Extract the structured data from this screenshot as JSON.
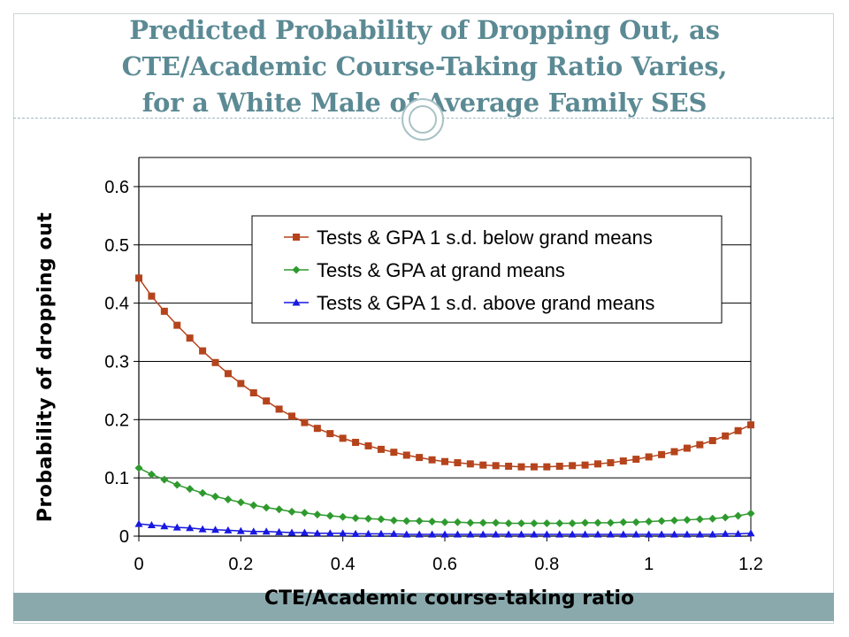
{
  "slide": {
    "title_lines": [
      "Predicted Probability of Dropping Out, as",
      "CTE/Academic Course-Taking Ratio Varies,",
      "for a White Male of Average Family SES"
    ]
  },
  "chart_data": {
    "type": "line",
    "xlabel": "CTE/Academic course-taking ratio",
    "ylabel": "Probability of dropping out",
    "xlim": [
      0,
      1.2
    ],
    "ylim": [
      0,
      0.65
    ],
    "x_ticks": [
      "0",
      "0.2",
      "0.4",
      "0.6",
      "0.8",
      "1",
      "1.2"
    ],
    "y_ticks": [
      "0",
      "0.1",
      "0.2",
      "0.3",
      "0.4",
      "0.5",
      "0.6"
    ],
    "grid": "horizontal",
    "legend_position": "top-right",
    "x": [
      0,
      0.025,
      0.05,
      0.075,
      0.1,
      0.125,
      0.15,
      0.175,
      0.2,
      0.225,
      0.25,
      0.275,
      0.3,
      0.325,
      0.35,
      0.375,
      0.4,
      0.425,
      0.45,
      0.475,
      0.5,
      0.525,
      0.55,
      0.575,
      0.6,
      0.625,
      0.65,
      0.675,
      0.7,
      0.725,
      0.75,
      0.775,
      0.8,
      0.825,
      0.85,
      0.875,
      0.9,
      0.925,
      0.95,
      0.975,
      1.0,
      1.025,
      1.05,
      1.075,
      1.1,
      1.125,
      1.15,
      1.175,
      1.2
    ],
    "series": [
      {
        "name": "Tests & GPA 1 s.d. below grand means",
        "color": "#b5441c",
        "marker": "square",
        "values": [
          0.443,
          0.412,
          0.386,
          0.362,
          0.34,
          0.318,
          0.298,
          0.279,
          0.262,
          0.246,
          0.232,
          0.218,
          0.206,
          0.195,
          0.185,
          0.176,
          0.168,
          0.161,
          0.155,
          0.149,
          0.144,
          0.139,
          0.135,
          0.131,
          0.128,
          0.126,
          0.124,
          0.122,
          0.121,
          0.12,
          0.119,
          0.119,
          0.119,
          0.12,
          0.121,
          0.122,
          0.124,
          0.126,
          0.129,
          0.132,
          0.136,
          0.14,
          0.145,
          0.151,
          0.157,
          0.164,
          0.172,
          0.181,
          0.191
        ]
      },
      {
        "name": "Tests & GPA at grand means",
        "color": "#2e9a2e",
        "marker": "diamond",
        "values": [
          0.117,
          0.106,
          0.097,
          0.088,
          0.081,
          0.074,
          0.068,
          0.063,
          0.058,
          0.053,
          0.049,
          0.046,
          0.042,
          0.04,
          0.037,
          0.035,
          0.033,
          0.031,
          0.03,
          0.029,
          0.027,
          0.026,
          0.026,
          0.025,
          0.024,
          0.024,
          0.023,
          0.023,
          0.023,
          0.022,
          0.022,
          0.022,
          0.022,
          0.022,
          0.022,
          0.023,
          0.023,
          0.023,
          0.024,
          0.024,
          0.025,
          0.026,
          0.027,
          0.028,
          0.029,
          0.03,
          0.032,
          0.035,
          0.039
        ]
      },
      {
        "name": "Tests & GPA 1 s.d. above grand means",
        "color": "#1818e0",
        "marker": "triangle",
        "values": [
          0.021,
          0.019,
          0.017,
          0.015,
          0.014,
          0.012,
          0.011,
          0.01,
          0.009,
          0.008,
          0.008,
          0.007,
          0.006,
          0.006,
          0.005,
          0.005,
          0.005,
          0.004,
          0.004,
          0.004,
          0.004,
          0.003,
          0.003,
          0.003,
          0.003,
          0.003,
          0.003,
          0.003,
          0.003,
          0.003,
          0.003,
          0.003,
          0.003,
          0.003,
          0.003,
          0.003,
          0.003,
          0.003,
          0.003,
          0.003,
          0.003,
          0.003,
          0.003,
          0.003,
          0.003,
          0.003,
          0.004,
          0.004,
          0.005
        ]
      }
    ]
  }
}
